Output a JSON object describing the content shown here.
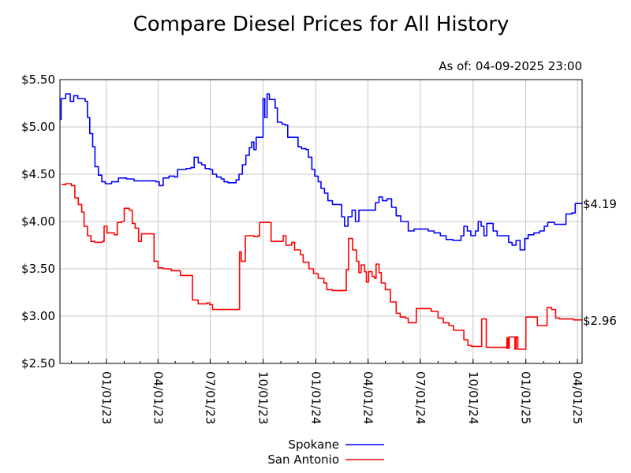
{
  "chart_data": {
    "type": "line",
    "title": "Compare Diesel Prices for All History",
    "subtitle": "As of: 04-09-2025 23:00",
    "xlabel": "",
    "ylabel": "",
    "ylim": [
      2.5,
      5.5
    ],
    "y_ticks": [
      2.5,
      3.0,
      3.5,
      4.0,
      4.5,
      5.0,
      5.5
    ],
    "y_tick_labels": [
      "$2.50",
      "$3.00",
      "$3.50",
      "$4.00",
      "$4.50",
      "$5.00",
      "$5.50"
    ],
    "x_tick_labels": [
      "01/01/23",
      "04/01/23",
      "07/01/23",
      "10/01/23",
      "01/01/24",
      "04/01/24",
      "07/01/24",
      "10/01/24",
      "01/01/25",
      "04/01/25"
    ],
    "xlim": [
      "2022-10-12",
      "2025-04-09"
    ],
    "grid": true,
    "legend_position": "bottom",
    "series": [
      {
        "name": "Spokane",
        "color": "#0000ff",
        "end_label": "$4.19",
        "points": [
          [
            "2022-10-12",
            5.08
          ],
          [
            "2022-10-14",
            5.3
          ],
          [
            "2022-10-22",
            5.35
          ],
          [
            "2022-10-30",
            5.27
          ],
          [
            "2022-11-05",
            5.33
          ],
          [
            "2022-11-12",
            5.3
          ],
          [
            "2022-11-25",
            5.27
          ],
          [
            "2022-11-29",
            5.1
          ],
          [
            "2022-12-03",
            4.93
          ],
          [
            "2022-12-08",
            4.79
          ],
          [
            "2022-12-12",
            4.58
          ],
          [
            "2022-12-18",
            4.49
          ],
          [
            "2022-12-24",
            4.42
          ],
          [
            "2022-12-30",
            4.4
          ],
          [
            "2023-01-10",
            4.42
          ],
          [
            "2023-01-22",
            4.46
          ],
          [
            "2023-02-05",
            4.45
          ],
          [
            "2023-02-18",
            4.43
          ],
          [
            "2023-03-05",
            4.43
          ],
          [
            "2023-03-20",
            4.43
          ],
          [
            "2023-03-28",
            4.42
          ],
          [
            "2023-04-03",
            4.38
          ],
          [
            "2023-04-10",
            4.46
          ],
          [
            "2023-04-20",
            4.48
          ],
          [
            "2023-04-30",
            4.47
          ],
          [
            "2023-05-05",
            4.55
          ],
          [
            "2023-05-20",
            4.56
          ],
          [
            "2023-05-28",
            4.57
          ],
          [
            "2023-06-03",
            4.68
          ],
          [
            "2023-06-10",
            4.62
          ],
          [
            "2023-06-16",
            4.6
          ],
          [
            "2023-06-22",
            4.56
          ],
          [
            "2023-06-30",
            4.55
          ],
          [
            "2023-07-05",
            4.5
          ],
          [
            "2023-07-12",
            4.47
          ],
          [
            "2023-07-20",
            4.45
          ],
          [
            "2023-07-25",
            4.42
          ],
          [
            "2023-08-01",
            4.41
          ],
          [
            "2023-08-10",
            4.41
          ],
          [
            "2023-08-15",
            4.44
          ],
          [
            "2023-08-20",
            4.5
          ],
          [
            "2023-08-26",
            4.6
          ],
          [
            "2023-09-01",
            4.7
          ],
          [
            "2023-09-07",
            4.78
          ],
          [
            "2023-09-11",
            4.84
          ],
          [
            "2023-09-15",
            4.76
          ],
          [
            "2023-09-19",
            4.89
          ],
          [
            "2023-09-27",
            4.89
          ],
          [
            "2023-10-01",
            5.3
          ],
          [
            "2023-10-04",
            5.1
          ],
          [
            "2023-10-08",
            5.35
          ],
          [
            "2023-10-12",
            5.29
          ],
          [
            "2023-10-18",
            5.29
          ],
          [
            "2023-10-22",
            5.2
          ],
          [
            "2023-10-26",
            5.05
          ],
          [
            "2023-11-03",
            5.03
          ],
          [
            "2023-11-08",
            5.02
          ],
          [
            "2023-11-13",
            4.89
          ],
          [
            "2023-11-25",
            4.89
          ],
          [
            "2023-12-01",
            4.79
          ],
          [
            "2023-12-07",
            4.77
          ],
          [
            "2023-12-15",
            4.76
          ],
          [
            "2023-12-19",
            4.68
          ],
          [
            "2023-12-25",
            4.55
          ],
          [
            "2023-12-30",
            4.48
          ],
          [
            "2024-01-05",
            4.42
          ],
          [
            "2024-01-10",
            4.35
          ],
          [
            "2024-01-16",
            4.3
          ],
          [
            "2024-01-22",
            4.22
          ],
          [
            "2024-01-30",
            4.18
          ],
          [
            "2024-02-09",
            4.18
          ],
          [
            "2024-02-15",
            4.05
          ],
          [
            "2024-02-20",
            3.95
          ],
          [
            "2024-02-26",
            4.05
          ],
          [
            "2024-03-04",
            4.12
          ],
          [
            "2024-03-10",
            4.0
          ],
          [
            "2024-03-16",
            4.12
          ],
          [
            "2024-03-26",
            4.12
          ],
          [
            "2024-04-08",
            4.12
          ],
          [
            "2024-04-14",
            4.2
          ],
          [
            "2024-04-20",
            4.26
          ],
          [
            "2024-04-26",
            4.22
          ],
          [
            "2024-05-04",
            4.24
          ],
          [
            "2024-05-12",
            4.15
          ],
          [
            "2024-05-20",
            4.06
          ],
          [
            "2024-05-28",
            4.0
          ],
          [
            "2024-06-06",
            4.0
          ],
          [
            "2024-06-10",
            3.9
          ],
          [
            "2024-06-20",
            3.92
          ],
          [
            "2024-06-30",
            3.92
          ],
          [
            "2024-07-05",
            3.92
          ],
          [
            "2024-07-15",
            3.9
          ],
          [
            "2024-07-25",
            3.88
          ],
          [
            "2024-08-05",
            3.85
          ],
          [
            "2024-08-15",
            3.81
          ],
          [
            "2024-08-27",
            3.8
          ],
          [
            "2024-09-05",
            3.8
          ],
          [
            "2024-09-10",
            3.85
          ],
          [
            "2024-09-15",
            3.95
          ],
          [
            "2024-09-21",
            3.9
          ],
          [
            "2024-09-27",
            3.85
          ],
          [
            "2024-10-05",
            3.9
          ],
          [
            "2024-10-10",
            4.0
          ],
          [
            "2024-10-15",
            3.95
          ],
          [
            "2024-10-20",
            3.85
          ],
          [
            "2024-10-25",
            3.98
          ],
          [
            "2024-11-05",
            3.9
          ],
          [
            "2024-11-12",
            3.85
          ],
          [
            "2024-11-26",
            3.85
          ],
          [
            "2024-12-02",
            3.78
          ],
          [
            "2024-12-08",
            3.75
          ],
          [
            "2024-12-15",
            3.8
          ],
          [
            "2024-12-22",
            3.7
          ],
          [
            "2024-12-30",
            3.82
          ],
          [
            "2025-01-05",
            3.86
          ],
          [
            "2025-01-15",
            3.88
          ],
          [
            "2025-01-25",
            3.9
          ],
          [
            "2025-02-02",
            3.95
          ],
          [
            "2025-02-08",
            3.99
          ],
          [
            "2025-02-20",
            3.97
          ],
          [
            "2025-03-05",
            3.97
          ],
          [
            "2025-03-12",
            4.08
          ],
          [
            "2025-03-22",
            4.09
          ],
          [
            "2025-03-28",
            4.19
          ],
          [
            "2025-04-09",
            4.19
          ]
        ]
      },
      {
        "name": "San Antonio",
        "color": "#ff0000",
        "end_label": "$2.96",
        "points": [
          [
            "2022-10-15",
            4.39
          ],
          [
            "2022-10-22",
            4.4
          ],
          [
            "2022-11-01",
            4.38
          ],
          [
            "2022-11-07",
            4.25
          ],
          [
            "2022-11-13",
            4.18
          ],
          [
            "2022-11-19",
            4.1
          ],
          [
            "2022-11-23",
            3.95
          ],
          [
            "2022-11-29",
            3.85
          ],
          [
            "2022-12-05",
            3.79
          ],
          [
            "2022-12-12",
            3.78
          ],
          [
            "2022-12-25",
            3.79
          ],
          [
            "2022-12-28",
            3.95
          ],
          [
            "2023-01-02",
            3.88
          ],
          [
            "2023-01-15",
            3.86
          ],
          [
            "2023-01-20",
            3.99
          ],
          [
            "2023-01-27",
            4.0
          ],
          [
            "2023-02-01",
            4.14
          ],
          [
            "2023-02-10",
            4.12
          ],
          [
            "2023-02-15",
            3.98
          ],
          [
            "2023-02-20",
            3.93
          ],
          [
            "2023-02-26",
            3.79
          ],
          [
            "2023-03-03",
            3.87
          ],
          [
            "2023-03-15",
            3.87
          ],
          [
            "2023-03-22",
            3.87
          ],
          [
            "2023-03-25",
            3.58
          ],
          [
            "2023-04-01",
            3.51
          ],
          [
            "2023-04-10",
            3.5
          ],
          [
            "2023-04-24",
            3.48
          ],
          [
            "2023-05-10",
            3.43
          ],
          [
            "2023-05-28",
            3.43
          ],
          [
            "2023-05-31",
            3.17
          ],
          [
            "2023-06-10",
            3.13
          ],
          [
            "2023-06-25",
            3.14
          ],
          [
            "2023-06-30",
            3.12
          ],
          [
            "2023-07-05",
            3.07
          ],
          [
            "2023-07-20",
            3.07
          ],
          [
            "2023-08-20",
            3.07
          ],
          [
            "2023-08-21",
            3.68
          ],
          [
            "2023-08-24",
            3.58
          ],
          [
            "2023-08-31",
            3.85
          ],
          [
            "2023-09-15",
            3.84
          ],
          [
            "2023-09-22",
            3.85
          ],
          [
            "2023-09-25",
            3.99
          ],
          [
            "2023-10-01",
            3.99
          ],
          [
            "2023-10-12",
            3.99
          ],
          [
            "2023-10-15",
            3.79
          ],
          [
            "2023-10-30",
            3.79
          ],
          [
            "2023-11-05",
            3.85
          ],
          [
            "2023-11-10",
            3.75
          ],
          [
            "2023-11-20",
            3.78
          ],
          [
            "2023-11-25",
            3.7
          ],
          [
            "2023-12-05",
            3.65
          ],
          [
            "2023-12-10",
            3.57
          ],
          [
            "2023-12-20",
            3.5
          ],
          [
            "2023-12-28",
            3.45
          ],
          [
            "2024-01-05",
            3.4
          ],
          [
            "2024-01-15",
            3.35
          ],
          [
            "2024-01-20",
            3.28
          ],
          [
            "2024-01-30",
            3.27
          ],
          [
            "2024-02-10",
            3.27
          ],
          [
            "2024-02-20",
            3.27
          ],
          [
            "2024-02-23",
            3.49
          ],
          [
            "2024-02-27",
            3.82
          ],
          [
            "2024-03-05",
            3.7
          ],
          [
            "2024-03-12",
            3.58
          ],
          [
            "2024-03-16",
            3.46
          ],
          [
            "2024-03-20",
            3.54
          ],
          [
            "2024-03-26",
            3.47
          ],
          [
            "2024-03-29",
            3.36
          ],
          [
            "2024-04-02",
            3.47
          ],
          [
            "2024-04-08",
            3.42
          ],
          [
            "2024-04-12",
            3.4
          ],
          [
            "2024-04-15",
            3.55
          ],
          [
            "2024-04-20",
            3.46
          ],
          [
            "2024-04-24",
            3.35
          ],
          [
            "2024-05-01",
            3.28
          ],
          [
            "2024-05-10",
            3.15
          ],
          [
            "2024-05-20",
            3.03
          ],
          [
            "2024-05-27",
            2.99
          ],
          [
            "2024-06-05",
            2.98
          ],
          [
            "2024-06-10",
            2.93
          ],
          [
            "2024-06-22",
            2.93
          ],
          [
            "2024-06-24",
            3.08
          ],
          [
            "2024-07-10",
            3.08
          ],
          [
            "2024-07-20",
            3.05
          ],
          [
            "2024-08-01",
            2.98
          ],
          [
            "2024-08-10",
            2.93
          ],
          [
            "2024-08-20",
            2.9
          ],
          [
            "2024-08-28",
            2.85
          ],
          [
            "2024-09-10",
            2.85
          ],
          [
            "2024-09-15",
            2.75
          ],
          [
            "2024-09-22",
            2.69
          ],
          [
            "2024-09-28",
            2.68
          ],
          [
            "2024-10-15",
            2.68
          ],
          [
            "2024-10-16",
            2.97
          ],
          [
            "2024-10-23",
            2.97
          ],
          [
            "2024-10-24",
            2.67
          ],
          [
            "2024-11-10",
            2.67
          ],
          [
            "2024-11-28",
            2.66
          ],
          [
            "2024-11-29",
            2.77
          ],
          [
            "2024-12-01",
            2.66
          ],
          [
            "2024-12-03",
            2.78
          ],
          [
            "2024-12-12",
            2.78
          ],
          [
            "2024-12-13",
            2.65
          ],
          [
            "2024-12-15",
            2.78
          ],
          [
            "2024-12-18",
            2.65
          ],
          [
            "2024-12-31",
            2.65
          ],
          [
            "2025-01-01",
            2.99
          ],
          [
            "2025-01-20",
            2.99
          ],
          [
            "2025-01-21",
            2.9
          ],
          [
            "2025-02-05",
            2.9
          ],
          [
            "2025-02-07",
            3.09
          ],
          [
            "2025-02-15",
            3.07
          ],
          [
            "2025-02-22",
            2.98
          ],
          [
            "2025-03-01",
            2.97
          ],
          [
            "2025-03-15",
            2.97
          ],
          [
            "2025-03-25",
            2.96
          ],
          [
            "2025-04-09",
            2.96
          ]
        ]
      }
    ]
  }
}
